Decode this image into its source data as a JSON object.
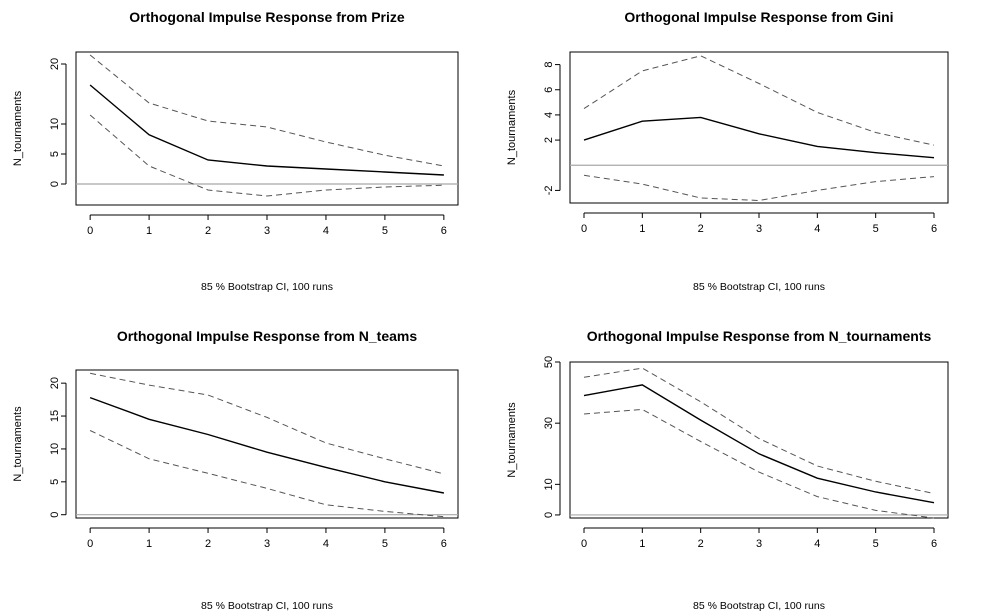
{
  "chart_data": [
    {
      "type": "line",
      "title": "Orthogonal Impulse Response from Prize",
      "ylabel": "N_tournaments",
      "xlabel": "",
      "footnote": "85 % Bootstrap CI,  100 runs",
      "x": [
        0,
        1,
        2,
        3,
        4,
        5,
        6
      ],
      "xticks": [
        0,
        1,
        2,
        3,
        4,
        5,
        6
      ],
      "yticks": [
        0,
        5,
        10,
        20
      ],
      "ylim": [
        -3.5,
        22
      ],
      "zero_line": 0,
      "series": [
        {
          "values": [
            16.5,
            8.2,
            4.0,
            3.0,
            2.5,
            2.0,
            1.5
          ],
          "style": "solid"
        },
        {
          "values": [
            21.5,
            13.5,
            10.5,
            9.5,
            7.0,
            4.8,
            3.0
          ],
          "style": "dashed"
        },
        {
          "values": [
            11.5,
            3.0,
            -1.0,
            -2.0,
            -1.0,
            -0.5,
            -0.2
          ],
          "style": "dashed"
        }
      ]
    },
    {
      "type": "line",
      "title": "Orthogonal Impulse Response from Gini",
      "ylabel": "N_tournaments",
      "xlabel": "",
      "footnote": "85 % Bootstrap CI,  100 runs",
      "x": [
        0,
        1,
        2,
        3,
        4,
        5,
        6
      ],
      "xticks": [
        0,
        1,
        2,
        3,
        4,
        5,
        6
      ],
      "yticks": [
        -2,
        2,
        4,
        6,
        8
      ],
      "ylim": [
        -3,
        9
      ],
      "zero_line": 0,
      "series": [
        {
          "values": [
            2.0,
            3.5,
            3.8,
            2.5,
            1.5,
            1.0,
            0.6
          ],
          "style": "solid"
        },
        {
          "values": [
            4.5,
            7.5,
            8.7,
            6.5,
            4.2,
            2.6,
            1.6
          ],
          "style": "dashed"
        },
        {
          "values": [
            -0.8,
            -1.5,
            -2.6,
            -2.8,
            -2.0,
            -1.3,
            -0.9
          ],
          "style": "dashed"
        }
      ]
    },
    {
      "type": "line",
      "title": "Orthogonal Impulse Response from N_teams",
      "ylabel": "N_tournaments",
      "xlabel": "",
      "footnote": "85 % Bootstrap CI,  100 runs",
      "x": [
        0,
        1,
        2,
        3,
        4,
        5,
        6
      ],
      "xticks": [
        0,
        1,
        2,
        3,
        4,
        5,
        6
      ],
      "yticks": [
        0,
        5,
        10,
        15,
        20
      ],
      "ylim": [
        -0.5,
        22
      ],
      "zero_line": 0,
      "series": [
        {
          "values": [
            17.8,
            14.5,
            12.2,
            9.5,
            7.2,
            5.0,
            3.3
          ],
          "style": "solid"
        },
        {
          "values": [
            21.5,
            19.7,
            18.2,
            14.8,
            10.9,
            8.5,
            6.2
          ],
          "style": "dashed"
        },
        {
          "values": [
            12.8,
            8.5,
            6.3,
            4.0,
            1.5,
            0.5,
            -0.3
          ],
          "style": "dashed"
        }
      ]
    },
    {
      "type": "line",
      "title": "Orthogonal Impulse Response from N_tournaments",
      "ylabel": "N_tournaments",
      "xlabel": "",
      "footnote": "85 % Bootstrap CI,  100 runs",
      "x": [
        0,
        1,
        2,
        3,
        4,
        5,
        6
      ],
      "xticks": [
        0,
        1,
        2,
        3,
        4,
        5,
        6
      ],
      "yticks": [
        0,
        10,
        30,
        50
      ],
      "ylim": [
        -1,
        50
      ],
      "zero_line": 0,
      "series": [
        {
          "values": [
            39,
            42.5,
            31,
            20,
            12,
            7.5,
            4
          ],
          "style": "solid"
        },
        {
          "values": [
            45,
            48,
            37,
            25,
            16,
            11,
            7
          ],
          "style": "dashed"
        },
        {
          "values": [
            33,
            34.5,
            24,
            14,
            6,
            1.5,
            -1
          ],
          "style": "dashed"
        }
      ]
    }
  ]
}
